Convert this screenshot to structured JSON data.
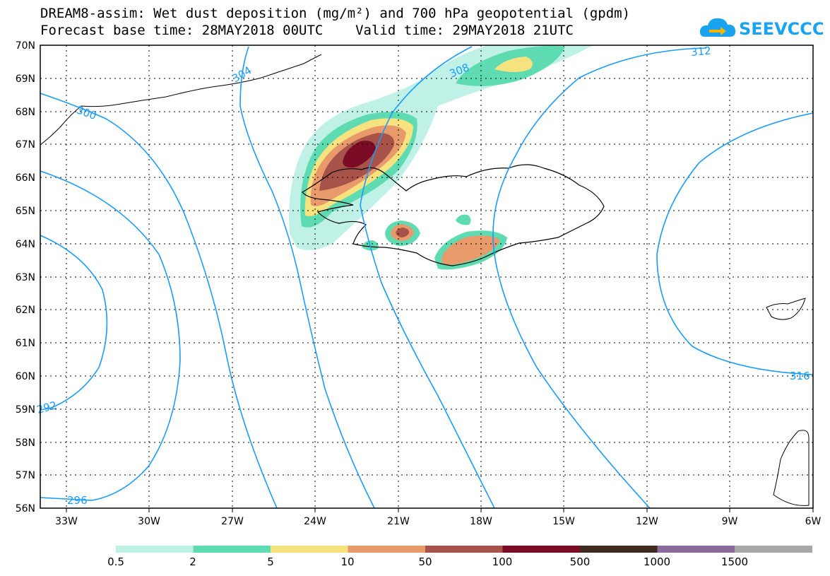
{
  "header": {
    "line1": "DREAM8-assim: Wet dust deposition (mg/m²) and 700 hPa geopotential (gpdm)",
    "line2": "Forecast base time: 28MAY2018 00UTC    Valid time: 29MAY2018 21UTC"
  },
  "logo": {
    "text": "SEEVCCC",
    "icon": "cloud-arrow-icon",
    "color": "#1aa3f0"
  },
  "map": {
    "lat_labels": [
      "70N",
      "69N",
      "68N",
      "67N",
      "66N",
      "65N",
      "64N",
      "63N",
      "62N",
      "61N",
      "60N",
      "59N",
      "58N",
      "57N",
      "56N"
    ],
    "lon_labels": [
      "33W",
      "30W",
      "27W",
      "24W",
      "21W",
      "18W",
      "15W",
      "12W",
      "9W",
      "6W"
    ],
    "contour_labels": [
      "304",
      "308",
      "312",
      "300",
      "316",
      "292",
      "296"
    ],
    "contour_color": "#1a9bff"
  },
  "legend": {
    "thresholds": [
      "0.5",
      "2",
      "5",
      "10",
      "50",
      "100",
      "500",
      "1000",
      "1500"
    ],
    "colors": [
      "#bff1e6",
      "#5fdbb2",
      "#f6e27f",
      "#e89a6b",
      "#a8534a",
      "#7a0c26",
      "#3e2a1f",
      "#8a6a9c",
      "#a8a8a8"
    ]
  }
}
